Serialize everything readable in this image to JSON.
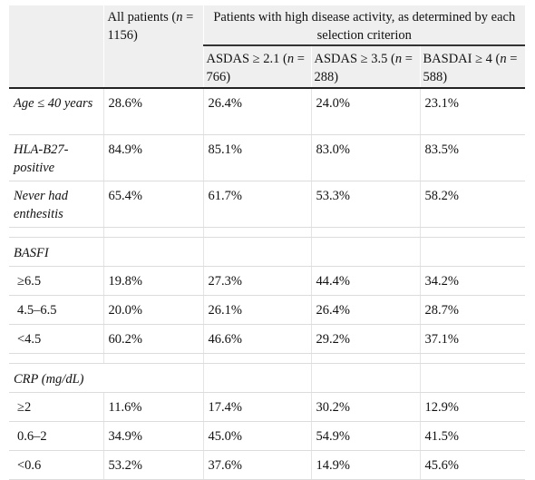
{
  "header": {
    "all_patients_label": "All patients (",
    "n_symbol": "n",
    "all_patients_n": " = 1156)",
    "group_title": "Patients with high disease activity, as determined by each selection criterion",
    "col_asdas21_label": "ASDAS ≥ 2.1 (",
    "col_asdas21_n": " = 766)",
    "col_asdas35_label": "ASDAS ≥ 3.5 (",
    "col_asdas35_n": " = 288)",
    "col_basdai_label": "BASDAI ≥ 4 (",
    "col_basdai_n": " = 588)"
  },
  "rows": [
    {
      "label": "Age ≤ 40 years",
      "values": [
        "28.6%",
        "26.4%",
        "24.0%",
        "23.1%"
      ]
    },
    {
      "label": "HLA-B27-positive",
      "values": [
        "84.9%",
        "85.1%",
        "83.0%",
        "83.5%"
      ]
    },
    {
      "label": "Never had enthesitis",
      "values": [
        "65.4%",
        "61.7%",
        "53.3%",
        "58.2%"
      ]
    }
  ],
  "basfi": {
    "title": "BASFI",
    "rows": [
      {
        "label": "≥6.5",
        "values": [
          "19.8%",
          "27.3%",
          "44.4%",
          "34.2%"
        ]
      },
      {
        "label": "4.5–6.5",
        "values": [
          "20.0%",
          "26.1%",
          "26.4%",
          "28.7%"
        ]
      },
      {
        "label": "<4.5",
        "values": [
          "60.2%",
          "46.6%",
          "29.2%",
          "37.1%"
        ]
      }
    ]
  },
  "crp": {
    "title": "CRP (mg/dL)",
    "rows": [
      {
        "label": "≥2",
        "values": [
          "11.6%",
          "17.4%",
          "30.2%",
          "12.9%"
        ]
      },
      {
        "label": "0.6–2",
        "values": [
          "34.9%",
          "45.0%",
          "54.9%",
          "41.5%"
        ]
      },
      {
        "label": "<0.6",
        "values": [
          "53.2%",
          "37.6%",
          "14.9%",
          "45.6%"
        ]
      }
    ]
  }
}
